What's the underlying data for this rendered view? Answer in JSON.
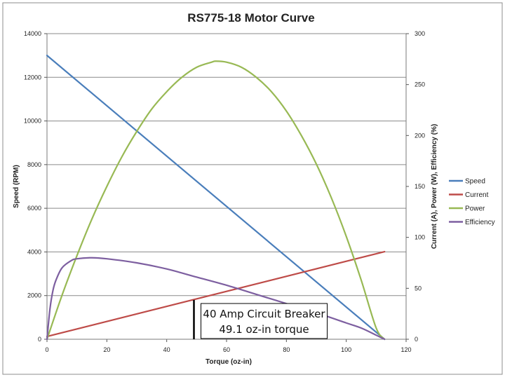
{
  "chart_data": {
    "type": "line",
    "title": "RS775-18 Motor Curve",
    "xlabel": "Torque (oz-in)",
    "ylabel_left": "Speed (RPM)",
    "ylabel_right": "Current (A), Power (W), Efficiency (%)",
    "xlim": [
      0,
      120
    ],
    "ylim_left": [
      0,
      14000
    ],
    "ylim_right": [
      0,
      300
    ],
    "xticks": [
      "0",
      "20",
      "40",
      "60",
      "80",
      "100",
      "120"
    ],
    "yticks_left": [
      "0",
      "2000",
      "4000",
      "6000",
      "8000",
      "10000",
      "12000",
      "14000"
    ],
    "yticks_right": [
      "0",
      "50",
      "100",
      "150",
      "200",
      "250",
      "300"
    ],
    "grid": "horizontal",
    "legend_position": "right",
    "series": [
      {
        "name": "Speed",
        "axis": "left",
        "color": "#4a7ebb",
        "x": [
          0,
          112.8
        ],
        "y": [
          13000,
          0
        ]
      },
      {
        "name": "Current",
        "axis": "right",
        "color": "#be4b48",
        "x": [
          0,
          112.8
        ],
        "y": [
          2.7,
          86
        ]
      },
      {
        "name": "Power",
        "axis": "right",
        "color": "#98b954",
        "x": [
          0,
          5,
          10,
          15,
          20,
          25,
          30,
          35,
          40,
          45,
          50,
          55,
          56.4,
          60,
          65,
          70,
          75,
          80,
          85,
          90,
          95,
          100,
          105,
          110,
          112.8
        ],
        "y": [
          0,
          43,
          82,
          118,
          150,
          179,
          204,
          226,
          243,
          257,
          267,
          272,
          273,
          272,
          267,
          257,
          243,
          224,
          200,
          172,
          139,
          101,
          58,
          11,
          0
        ]
      },
      {
        "name": "Efficiency",
        "axis": "right",
        "color": "#7d5fa0",
        "x": [
          0,
          1,
          2,
          3,
          5,
          8,
          10,
          15,
          20,
          30,
          40,
          50,
          60,
          70,
          80,
          90,
          100,
          105,
          110,
          112.8
        ],
        "y": [
          0,
          30,
          48,
          58,
          70,
          77,
          79,
          80,
          79,
          75,
          69,
          61,
          53,
          44,
          35,
          26,
          16,
          11,
          4,
          0
        ]
      }
    ],
    "annotation": {
      "lines": [
        "40 Amp Circuit Breaker",
        "49.1 oz-in torque"
      ],
      "marker_x": 49.1,
      "marker_top_y": 1800
    }
  }
}
